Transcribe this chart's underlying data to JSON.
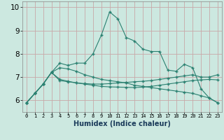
{
  "xlabel": "Humidex (Indice chaleur)",
  "x": [
    0,
    1,
    2,
    3,
    4,
    5,
    6,
    7,
    8,
    9,
    10,
    11,
    12,
    13,
    14,
    15,
    16,
    17,
    18,
    19,
    20,
    21,
    22,
    23
  ],
  "line1": [
    5.9,
    6.3,
    6.7,
    7.2,
    7.6,
    7.5,
    7.6,
    7.6,
    8.0,
    8.8,
    9.8,
    9.5,
    8.7,
    8.55,
    8.2,
    8.1,
    8.1,
    7.3,
    7.25,
    7.55,
    7.4,
    6.5,
    6.1,
    5.9
  ],
  "line2": [
    5.9,
    6.3,
    6.7,
    7.2,
    7.4,
    7.35,
    7.25,
    7.1,
    7.0,
    6.9,
    6.85,
    6.8,
    6.75,
    6.65,
    6.6,
    6.55,
    6.5,
    6.45,
    6.4,
    6.35,
    6.3,
    6.2,
    6.1,
    5.9
  ],
  "line3": [
    5.9,
    6.3,
    6.7,
    7.2,
    6.85,
    6.8,
    6.75,
    6.72,
    6.7,
    6.7,
    6.72,
    6.75,
    6.77,
    6.8,
    6.82,
    6.85,
    6.9,
    6.95,
    7.0,
    7.05,
    7.1,
    7.0,
    7.0,
    7.1
  ],
  "line4": [
    5.9,
    6.3,
    6.7,
    7.2,
    6.9,
    6.82,
    6.75,
    6.7,
    6.65,
    6.6,
    6.58,
    6.57,
    6.56,
    6.55,
    6.57,
    6.6,
    6.65,
    6.7,
    6.75,
    6.8,
    6.85,
    6.88,
    6.9,
    6.88
  ],
  "line_color": "#2a8070",
  "bg_color": "#cce8e0",
  "grid_color": "#c8a8a8",
  "ylim": [
    5.5,
    10.25
  ],
  "yticks": [
    6,
    7,
    8,
    9,
    10
  ]
}
